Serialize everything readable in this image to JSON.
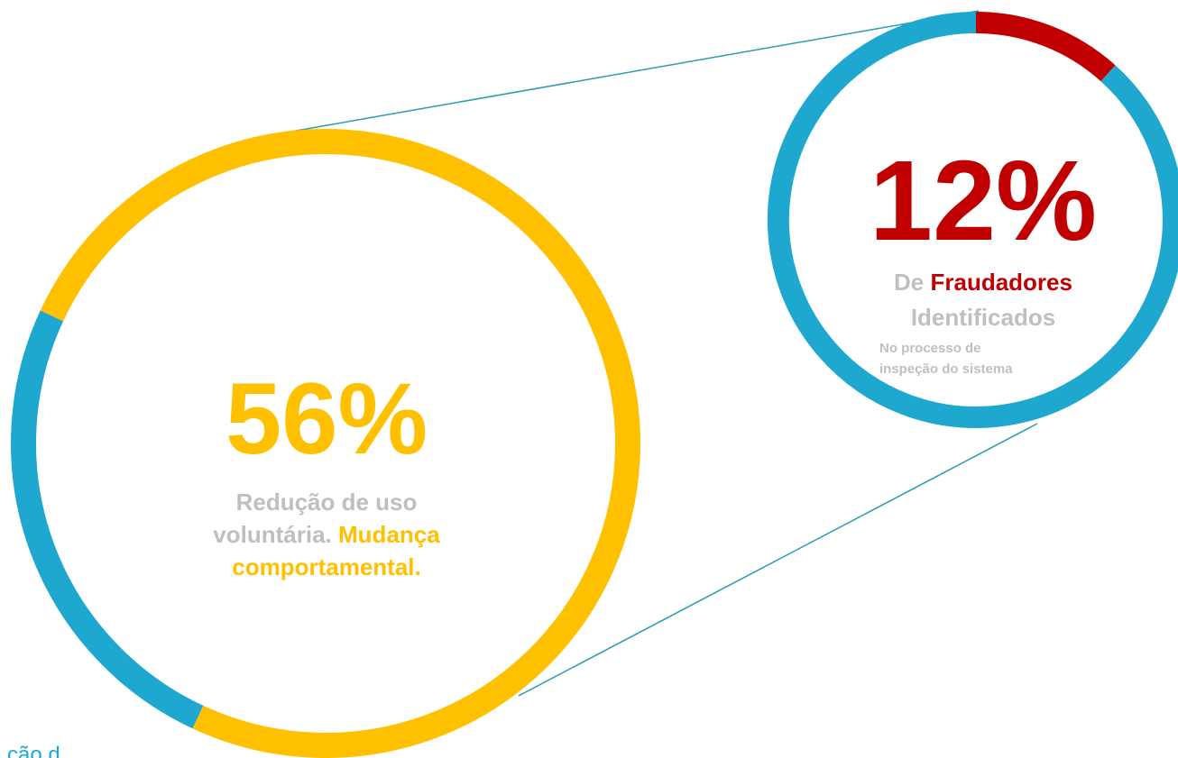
{
  "left": {
    "value": "56%",
    "line1": "Redução de uso",
    "line2_gray": "voluntária.",
    "line2_highlight": "Mudança",
    "line3": "comportamental."
  },
  "right": {
    "value": "12%",
    "line1_gray": "De",
    "line1_highlight": "Fraudadores",
    "line2": "Identificados",
    "note1": "No processo de",
    "note2": "inspeção do sistema"
  },
  "footer_fragment": "ção d"
}
